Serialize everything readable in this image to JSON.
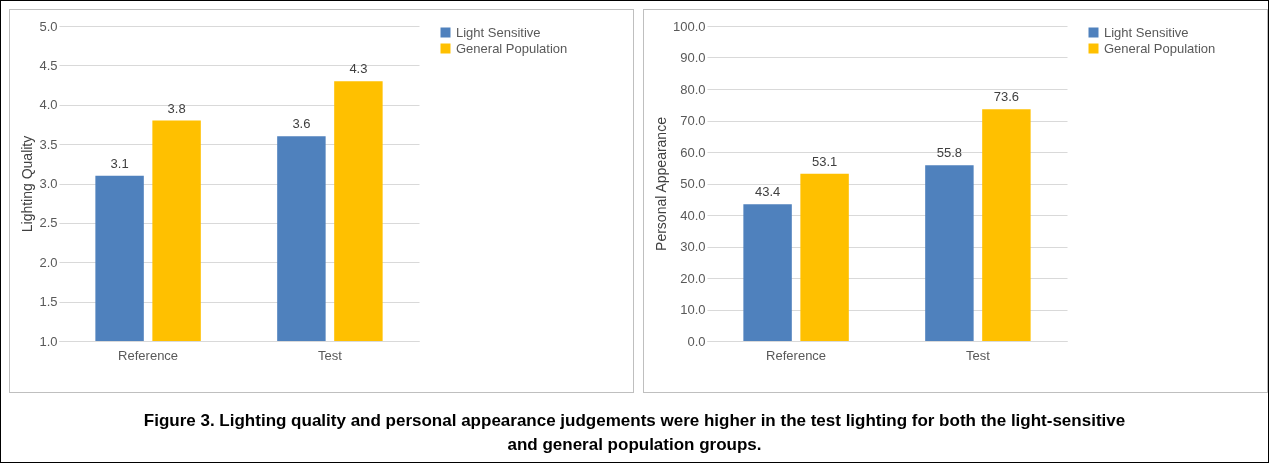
{
  "chart_data": [
    {
      "type": "bar",
      "ylabel": "Lighting Quality",
      "categories": [
        "Reference",
        "Test"
      ],
      "series": [
        {
          "name": "Light Sensitive",
          "color": "#4f81bd",
          "values": [
            3.1,
            3.6
          ]
        },
        {
          "name": "General Population",
          "color": "#ffc000",
          "values": [
            3.8,
            4.3
          ]
        }
      ],
      "ylim": [
        1,
        5
      ],
      "yticks": [
        {
          "value": 1,
          "label": "1.0"
        },
        {
          "value": 1.5,
          "label": "1.5"
        },
        {
          "value": 2,
          "label": "2.0"
        },
        {
          "value": 2.5,
          "label": "2.5"
        },
        {
          "value": 3,
          "label": "3.0"
        },
        {
          "value": 3.5,
          "label": "3.5"
        },
        {
          "value": 4,
          "label": "4.0"
        },
        {
          "value": 4.5,
          "label": "4.5"
        },
        {
          "value": 5,
          "label": "5.0"
        }
      ],
      "grid": "y",
      "legend": "right",
      "data_labels": true,
      "annotations": [
        "Figure 3. Lighting quality and personal appearance judgements were higher in the test lighting for both the light-sensitive and general population groups."
      ]
    },
    {
      "type": "bar",
      "ylabel": "Personal Appearance",
      "categories": [
        "Reference",
        "Test"
      ],
      "series": [
        {
          "name": "Light Sensitive",
          "color": "#4f81bd",
          "values": [
            43.4,
            55.8
          ]
        },
        {
          "name": "General Population",
          "color": "#ffc000",
          "values": [
            53.1,
            73.6
          ]
        }
      ],
      "ylim": [
        0,
        100
      ],
      "yticks": [
        {
          "value": 0,
          "label": "0.0"
        },
        {
          "value": 10,
          "label": "10.0"
        },
        {
          "value": 20,
          "label": "20.0"
        },
        {
          "value": 30,
          "label": "30.0"
        },
        {
          "value": 40,
          "label": "40.0"
        },
        {
          "value": 50,
          "label": "50.0"
        },
        {
          "value": 60,
          "label": "60.0"
        },
        {
          "value": 70,
          "label": "70.0"
        },
        {
          "value": 80,
          "label": "80.0"
        },
        {
          "value": 90,
          "label": "90.0"
        },
        {
          "value": 100,
          "label": "100.0"
        }
      ],
      "grid": "y",
      "legend": "right",
      "data_labels": true
    }
  ]
}
